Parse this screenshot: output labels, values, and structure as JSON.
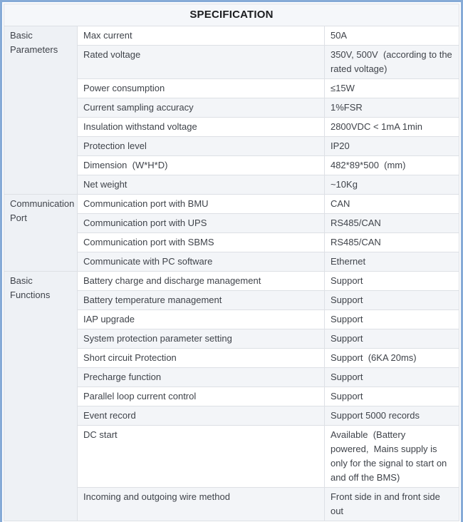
{
  "header": {
    "title": "SPECIFICATION"
  },
  "colors": {
    "outer_border": "#86abd7",
    "header_bg": "#f5f7fa",
    "category_bg": "#eef1f5",
    "alt_row_bg": "#f3f5f8",
    "grid_line": "#dde0e5",
    "text": "#3f434a"
  },
  "sections": [
    {
      "category": "Basic Parameters",
      "rows": [
        {
          "param": "Max current",
          "value": "50A"
        },
        {
          "param": "Rated voltage",
          "value": "350V, 500V  (according to the rated voltage)"
        },
        {
          "param": "Power consumption",
          "value": "≤15W"
        },
        {
          "param": "Current sampling accuracy",
          "value": "1%FSR"
        },
        {
          "param": "Insulation withstand voltage",
          "value": "2800VDC < 1mA 1min"
        },
        {
          "param": "Protection level",
          "value": "IP20"
        },
        {
          "param": "Dimension  (W*H*D)",
          "value": "482*89*500  (mm)"
        },
        {
          "param": "Net weight",
          "value": "~10Kg"
        }
      ]
    },
    {
      "category": "Communication Port",
      "rows": [
        {
          "param": "Communication port with BMU",
          "value": "CAN"
        },
        {
          "param": "Communication port with UPS",
          "value": "RS485/CAN"
        },
        {
          "param": "Communication port with SBMS",
          "value": "RS485/CAN"
        },
        {
          "param": "Communicate with PC software",
          "value": "Ethernet"
        }
      ]
    },
    {
      "category": "Basic Functions",
      "rows": [
        {
          "param": "Battery charge and discharge management",
          "value": "Support"
        },
        {
          "param": "Battery temperature management",
          "value": "Support"
        },
        {
          "param": "IAP upgrade",
          "value": "Support"
        },
        {
          "param": "System protection parameter setting",
          "value": "Support"
        },
        {
          "param": "Short circuit Protection",
          "value": "Support  (6KA 20ms)"
        },
        {
          "param": "Precharge function",
          "value": "Support"
        },
        {
          "param": "Parallel loop current control",
          "value": "Support"
        },
        {
          "param": "Event record",
          "value": "Support 5000 records"
        },
        {
          "param": "DC start",
          "value": "Available  (Battery powered,  Mains supply is only for the signal to start on and off the BMS)"
        },
        {
          "param": "Incoming and outgoing wire method",
          "value": "Front side in and front side out"
        }
      ]
    }
  ]
}
